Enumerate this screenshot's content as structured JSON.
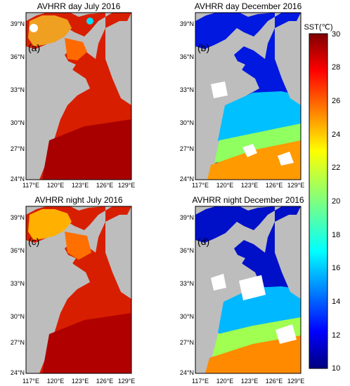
{
  "panels": [
    {
      "id": "a",
      "title": "AVHRR day July 2016",
      "label": "(a)",
      "season": "summer",
      "mode": "day"
    },
    {
      "id": "b",
      "title": "AVHRR day December 2016",
      "label": "(b)",
      "season": "winter",
      "mode": "day"
    },
    {
      "id": "c",
      "title": "AVHRR night July 2016",
      "label": "(c)",
      "season": "summer",
      "mode": "night"
    },
    {
      "id": "d",
      "title": "AVHRR night December 2016",
      "label": "(d)",
      "season": "winter",
      "mode": "night"
    }
  ],
  "axes": {
    "lat_ticks": [
      "39°N",
      "36°N",
      "33°N",
      "30°N",
      "27°N",
      "24°N"
    ],
    "lon_ticks": [
      "117°E",
      "120°E",
      "123°E",
      "126°E",
      "129°E"
    ],
    "lat_range": [
      24,
      40
    ],
    "lon_range": [
      117,
      130
    ]
  },
  "colorbar": {
    "label": "SST(℃)",
    "ticks": [
      "30",
      "28",
      "26",
      "24",
      "22",
      "20",
      "18",
      "16",
      "14",
      "12",
      "10"
    ],
    "range": [
      10,
      30
    ],
    "colormap": "jet"
  },
  "colors": {
    "land": "#bdbdbd",
    "cloud_mask": "#ffffff",
    "frame": "#000000"
  }
}
